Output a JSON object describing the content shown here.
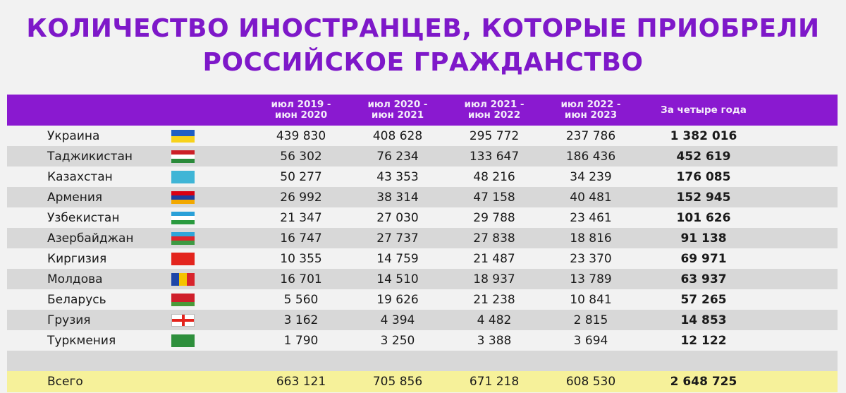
{
  "title_line1": "КОЛИЧЕСТВО ИНОСТРАНЦЕВ, КОТОРЫЕ ПРИОБРЕЛИ",
  "title_line2": "РОССИЙСКОЕ ГРАЖДАНСТВО",
  "columns": [
    {
      "line1": "июл 2019 -",
      "line2": "июн 2020"
    },
    {
      "line1": "июл 2020 -",
      "line2": "июн 2021"
    },
    {
      "line1": "июл 2021 -",
      "line2": "июн 2022"
    },
    {
      "line1": "июл 2022 -",
      "line2": "июн 2023"
    },
    {
      "line1": "За четыре года",
      "line2": ""
    }
  ],
  "colors": {
    "title": "#7e18c9",
    "header": "#8a19d0",
    "stripe": "#d8d8d8",
    "total_row": "#f6f19a"
  },
  "chart_data": {
    "type": "table",
    "title": "КОЛИЧЕСТВО ИНОСТРАНЦЕВ, КОТОРЫЕ ПРИОБРЕЛИ РОССИЙСКОЕ ГРАЖДАНСТВО",
    "rows": [
      {
        "country": "Украина",
        "flag": "ukraine-flag",
        "values": [
          "439 830",
          "408 628",
          "295 772",
          "237 786"
        ],
        "total": "1 382 016"
      },
      {
        "country": "Таджикистан",
        "flag": "tajikistan-flag",
        "values": [
          "56 302",
          "76 234",
          "133 647",
          "186 436"
        ],
        "total": "452 619"
      },
      {
        "country": "Казахстан",
        "flag": "kazakhstan-flag",
        "values": [
          "50 277",
          "43 353",
          "48 216",
          "34 239"
        ],
        "total": "176 085"
      },
      {
        "country": "Армения",
        "flag": "armenia-flag",
        "values": [
          "26 992",
          "38 314",
          "47 158",
          "40 481"
        ],
        "total": "152 945"
      },
      {
        "country": "Узбекистан",
        "flag": "uzbekistan-flag",
        "values": [
          "21 347",
          "27 030",
          "29 788",
          "23 461"
        ],
        "total": "101 626"
      },
      {
        "country": "Азербайджан",
        "flag": "azerbaijan-flag",
        "values": [
          "16 747",
          "27 737",
          "27 838",
          "18 816"
        ],
        "total": "91 138"
      },
      {
        "country": "Киргизия",
        "flag": "kyrgyzstan-flag",
        "values": [
          "10 355",
          "14 759",
          "21 487",
          "23 370"
        ],
        "total": "69 971"
      },
      {
        "country": "Молдова",
        "flag": "moldova-flag",
        "values": [
          "16 701",
          "14 510",
          "18 937",
          "13 789"
        ],
        "total": "63 937"
      },
      {
        "country": "Беларусь",
        "flag": "belarus-flag",
        "values": [
          "5 560",
          "19 626",
          "21 238",
          "10 841"
        ],
        "total": "57 265"
      },
      {
        "country": "Грузия",
        "flag": "georgia-flag",
        "values": [
          "3 162",
          "4 394",
          "4 482",
          "2 815"
        ],
        "total": "14 853"
      },
      {
        "country": "Туркмения",
        "flag": "turkmenistan-flag",
        "values": [
          "1 790",
          "3 250",
          "3 388",
          "3 694"
        ],
        "total": "12 122"
      }
    ],
    "total_row": {
      "label": "Всего",
      "values": [
        "663 121",
        "705 856",
        "671 218",
        "608 530"
      ],
      "total": "2 648 725"
    }
  }
}
